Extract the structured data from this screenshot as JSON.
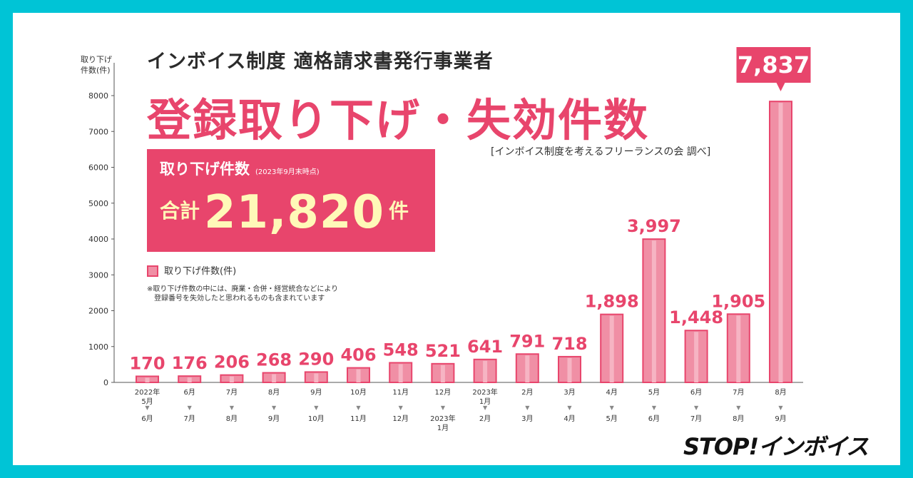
{
  "heading": {
    "subtitle": "インボイス制度 適格請求書発行事業者",
    "title": "登録取り下げ・失効件数",
    "source": "[インボイス制度を考えるフリーランスの会 調べ]"
  },
  "total_box": {
    "label": "取り下げ件数",
    "as_of": "(2023年9月末時点)",
    "prefix": "合計",
    "value": "21,820",
    "unit": "件"
  },
  "legend": {
    "label": "取り下げ件数(件)"
  },
  "note": {
    "line1": "※取り下げ件数の中には、廃業・合併・経営統合などにより",
    "line2": "登録番号を失効したと思われるものも含まれています"
  },
  "brand": "STOP!インボイス",
  "colors": {
    "background": "#00c4d6",
    "accent": "#e8456c",
    "bar_fill": "#f08fa5",
    "total_text": "#fff9b8"
  },
  "chart_data": {
    "type": "bar",
    "ylabel": "取り下げ\n件数(件)",
    "ylim": [
      0,
      8000
    ],
    "yticks": [
      0,
      1000,
      2000,
      3000,
      4000,
      5000,
      6000,
      7000,
      8000
    ],
    "categories": [
      {
        "from": [
          "2022年",
          "5月"
        ],
        "to": [
          "6月"
        ]
      },
      {
        "from": [
          "6月"
        ],
        "to": [
          "7月"
        ]
      },
      {
        "from": [
          "7月"
        ],
        "to": [
          "8月"
        ]
      },
      {
        "from": [
          "8月"
        ],
        "to": [
          "9月"
        ]
      },
      {
        "from": [
          "9月"
        ],
        "to": [
          "10月"
        ]
      },
      {
        "from": [
          "10月"
        ],
        "to": [
          "11月"
        ]
      },
      {
        "from": [
          "11月"
        ],
        "to": [
          "12月"
        ]
      },
      {
        "from": [
          "12月"
        ],
        "to": [
          "2023年",
          "1月"
        ]
      },
      {
        "from": [
          "2023年",
          "1月"
        ],
        "to": [
          "2月"
        ]
      },
      {
        "from": [
          "2月"
        ],
        "to": [
          "3月"
        ]
      },
      {
        "from": [
          "3月"
        ],
        "to": [
          "4月"
        ]
      },
      {
        "from": [
          "4月"
        ],
        "to": [
          "5月"
        ]
      },
      {
        "from": [
          "5月"
        ],
        "to": [
          "6月"
        ]
      },
      {
        "from": [
          "6月"
        ],
        "to": [
          "7月"
        ]
      },
      {
        "from": [
          "7月"
        ],
        "to": [
          "8月"
        ]
      },
      {
        "from": [
          "8月"
        ],
        "to": [
          "9月"
        ]
      }
    ],
    "arrow": "▼",
    "values": [
      170,
      176,
      206,
      268,
      290,
      406,
      548,
      521,
      641,
      791,
      718,
      1898,
      3997,
      1448,
      1905,
      7837
    ],
    "labels": [
      "170",
      "176",
      "206",
      "268",
      "290",
      "406",
      "548",
      "521",
      "641",
      "791",
      "718",
      "1,898",
      "3,997",
      "1,448",
      "1,905",
      "7,837"
    ],
    "highlight_index": 15
  }
}
